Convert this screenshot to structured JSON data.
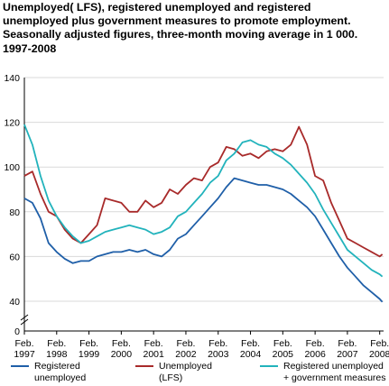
{
  "title_lines": [
    "Unemployed( LFS), registered unemployed and registered",
    "unemployed plus government measures to promote employment.",
    "Seasonally adjusted figures, three-month moving average in 1 000.",
    "1997-2008"
  ],
  "chart_data": {
    "type": "line",
    "title": "Unemployed( LFS), registered unemployed and registered unemployed plus government measures to promote employment. Seasonally adjusted figures, three-month moving average in 1 000. 1997-2008",
    "xlabel": "",
    "ylabel": "",
    "ylim": [
      0,
      140
    ],
    "yticks": [
      "0",
      "40",
      "60",
      "80",
      "100",
      "120",
      "140"
    ],
    "axis_break": true,
    "grid": true,
    "legend_position": "bottom",
    "x_tick_labels": [
      [
        "Feb.",
        "1997"
      ],
      [
        "Feb.",
        "1998"
      ],
      [
        "Feb.",
        "1999"
      ],
      [
        "Feb.",
        "2000"
      ],
      [
        "Feb.",
        "2001"
      ],
      [
        "Feb.",
        "2002"
      ],
      [
        "Feb.",
        "2003"
      ],
      [
        "Feb.",
        "2004"
      ],
      [
        "Feb.",
        "2005"
      ],
      [
        "Feb.",
        "2006"
      ],
      [
        "Feb.",
        "2007"
      ],
      [
        "Feb.",
        "2008"
      ]
    ],
    "x": [
      1997.0,
      1997.25,
      1997.5,
      1997.75,
      1998.0,
      1998.25,
      1998.5,
      1998.75,
      1999.0,
      1999.25,
      1999.5,
      1999.75,
      2000.0,
      2000.25,
      2000.5,
      2000.75,
      2001.0,
      2001.25,
      2001.5,
      2001.75,
      2002.0,
      2002.25,
      2002.5,
      2002.75,
      2003.0,
      2003.25,
      2003.5,
      2003.75,
      2004.0,
      2004.25,
      2004.5,
      2004.75,
      2005.0,
      2005.25,
      2005.5,
      2005.75,
      2006.0,
      2006.25,
      2006.5,
      2006.75,
      2007.0,
      2007.25,
      2007.5,
      2007.75,
      2008.0,
      2008.08
    ],
    "series": [
      {
        "name": "Registered unemployed",
        "color": "#1f5fa8",
        "values": [
          86,
          84,
          77,
          66,
          62,
          59,
          57,
          58,
          58,
          60,
          61,
          62,
          62,
          63,
          62,
          63,
          61,
          60,
          63,
          68,
          70,
          74,
          78,
          82,
          86,
          91,
          95,
          94,
          93,
          92,
          92,
          91,
          90,
          88,
          85,
          82,
          78,
          72,
          66,
          60,
          55,
          51,
          47,
          44,
          41,
          39
        ]
      },
      {
        "name": "Unemployed (LFS)",
        "color": "#a82a2a",
        "values": [
          96,
          98,
          88,
          80,
          78,
          72,
          68,
          66,
          70,
          74,
          86,
          85,
          84,
          80,
          80,
          85,
          82,
          84,
          90,
          88,
          92,
          95,
          94,
          100,
          102,
          109,
          108,
          105,
          106,
          104,
          107,
          108,
          107,
          110,
          118,
          110,
          96,
          94,
          84,
          76,
          68,
          66,
          64,
          62,
          60,
          61
        ]
      },
      {
        "name": "Registered unemployed + government measures",
        "color": "#22b3bc",
        "values": [
          119,
          110,
          96,
          85,
          78,
          73,
          69,
          66,
          67,
          69,
          71,
          72,
          73,
          74,
          73,
          72,
          70,
          71,
          73,
          78,
          80,
          84,
          88,
          93,
          96,
          103,
          106,
          111,
          112,
          110,
          109,
          106,
          104,
          101,
          97,
          93,
          88,
          81,
          75,
          69,
          63,
          60,
          57,
          54,
          52,
          51
        ]
      }
    ]
  },
  "legend": [
    {
      "line1": "Registered",
      "line2": "unemployed",
      "color": "#1f5fa8"
    },
    {
      "line1": "Unemployed",
      "line2": "(LFS)",
      "color": "#a82a2a"
    },
    {
      "line1": "Registered unemployed",
      "line2": "+ government measures",
      "color": "#22b3bc"
    }
  ]
}
